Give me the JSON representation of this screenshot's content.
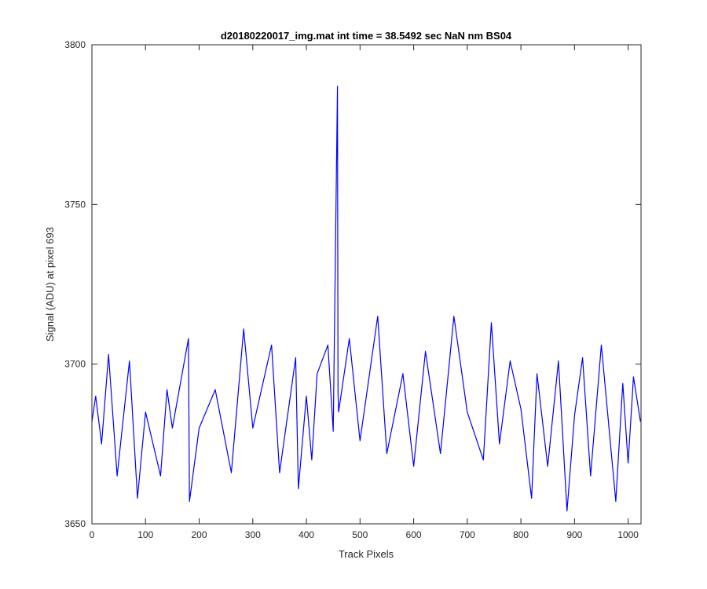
{
  "chart_data": {
    "type": "line",
    "title": "d20180220017_img.mat int time = 38.5492 sec  NaN nm BS04",
    "xlabel": "Track Pixels",
    "ylabel": "Signal (ADU) at pixel 693",
    "xlim": [
      0,
      1024
    ],
    "ylim": [
      3650,
      3800
    ],
    "xticks": [
      0,
      100,
      200,
      300,
      400,
      500,
      600,
      700,
      800,
      900,
      1000
    ],
    "xtick_labels": [
      "0",
      "100",
      "200",
      "300",
      "400",
      "500",
      "600",
      "700",
      "800",
      "900",
      "1000"
    ],
    "yticks": [
      3650,
      3700,
      3750,
      3800
    ],
    "ytick_labels": [
      "3650",
      "3700",
      "3750",
      "3800"
    ],
    "grid": false,
    "series": [
      {
        "color": "#0000ff",
        "x": [
          0,
          7,
          18,
          31,
          47,
          70,
          85,
          100,
          128,
          140,
          150,
          180,
          182,
          200,
          230,
          260,
          283,
          300,
          335,
          350,
          380,
          385,
          400,
          410,
          420,
          440,
          450,
          458,
          459,
          460,
          480,
          500,
          533,
          550,
          580,
          600,
          622,
          650,
          675,
          700,
          730,
          745,
          760,
          780,
          800,
          820,
          830,
          850,
          870,
          886,
          900,
          915,
          930,
          950,
          977,
          990,
          1000,
          1010,
          1023
        ],
        "y": [
          3682,
          3690,
          3675,
          3703,
          3665,
          3701,
          3658,
          3685,
          3665,
          3692,
          3680,
          3708,
          3657,
          3680,
          3692,
          3666,
          3711,
          3680,
          3706,
          3666,
          3702,
          3661,
          3690,
          3670,
          3697,
          3706,
          3679,
          3787,
          3691,
          3685,
          3708,
          3676,
          3715,
          3672,
          3697,
          3668,
          3704,
          3672,
          3715,
          3685,
          3670,
          3713,
          3675,
          3701,
          3686,
          3658,
          3697,
          3668,
          3701,
          3654,
          3684,
          3702,
          3665,
          3706,
          3657,
          3694,
          3669,
          3696,
          3682
        ]
      }
    ]
  }
}
